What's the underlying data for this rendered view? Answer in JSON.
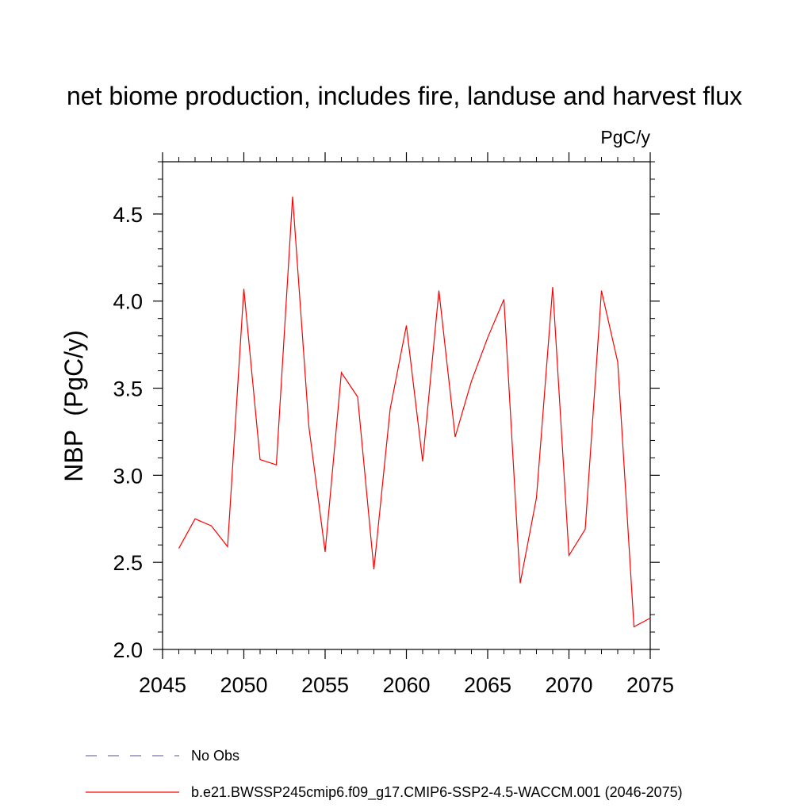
{
  "chart_data": {
    "type": "line",
    "title": "net biome production, includes fire, landuse and harvest flux",
    "units_label": "PgC/y",
    "xlabel": "",
    "ylabel": "NBP  (PgC/y)",
    "xlim": [
      2045,
      2075
    ],
    "ylim": [
      2.0,
      4.8
    ],
    "x_ticks": [
      2045,
      2050,
      2055,
      2060,
      2065,
      2070,
      2075
    ],
    "y_ticks": [
      2.0,
      2.5,
      3.0,
      3.5,
      4.0,
      4.5
    ],
    "x_tick_labels": [
      "2045",
      "2050",
      "2055",
      "2060",
      "2065",
      "2070",
      "2075"
    ],
    "y_tick_labels": [
      "2.0",
      "2.5",
      "3.0",
      "3.5",
      "4.0",
      "4.5"
    ],
    "grid": false,
    "legend_position": "bottom-left",
    "series": [
      {
        "name": "b.e21.BWSSP245cmip6.f09_g17.CMIP6-SSP2-4.5-WACCM.001 (2046-2075)",
        "color": "#ff0000",
        "style": "solid",
        "x": [
          2046,
          2047,
          2048,
          2049,
          2050,
          2051,
          2052,
          2053,
          2054,
          2055,
          2056,
          2057,
          2058,
          2059,
          2060,
          2061,
          2062,
          2063,
          2064,
          2065,
          2066,
          2067,
          2068,
          2069,
          2070,
          2071,
          2072,
          2073,
          2074,
          2075
        ],
        "values": [
          2.58,
          2.75,
          2.71,
          2.59,
          4.07,
          3.09,
          3.06,
          4.6,
          3.28,
          2.56,
          3.59,
          3.45,
          2.46,
          3.38,
          3.86,
          3.08,
          4.06,
          3.22,
          3.54,
          3.79,
          4.01,
          2.38,
          2.87,
          4.08,
          2.54,
          2.69,
          4.06,
          3.65,
          2.13,
          2.18
        ]
      }
    ],
    "legend": [
      {
        "label": "No Obs",
        "color": "#7a6fb0",
        "style": "dashed"
      },
      {
        "label": "b.e21.BWSSP245cmip6.f09_g17.CMIP6-SSP2-4.5-WACCM.001 (2046-2075)",
        "color": "#ff0000",
        "style": "solid"
      }
    ]
  }
}
